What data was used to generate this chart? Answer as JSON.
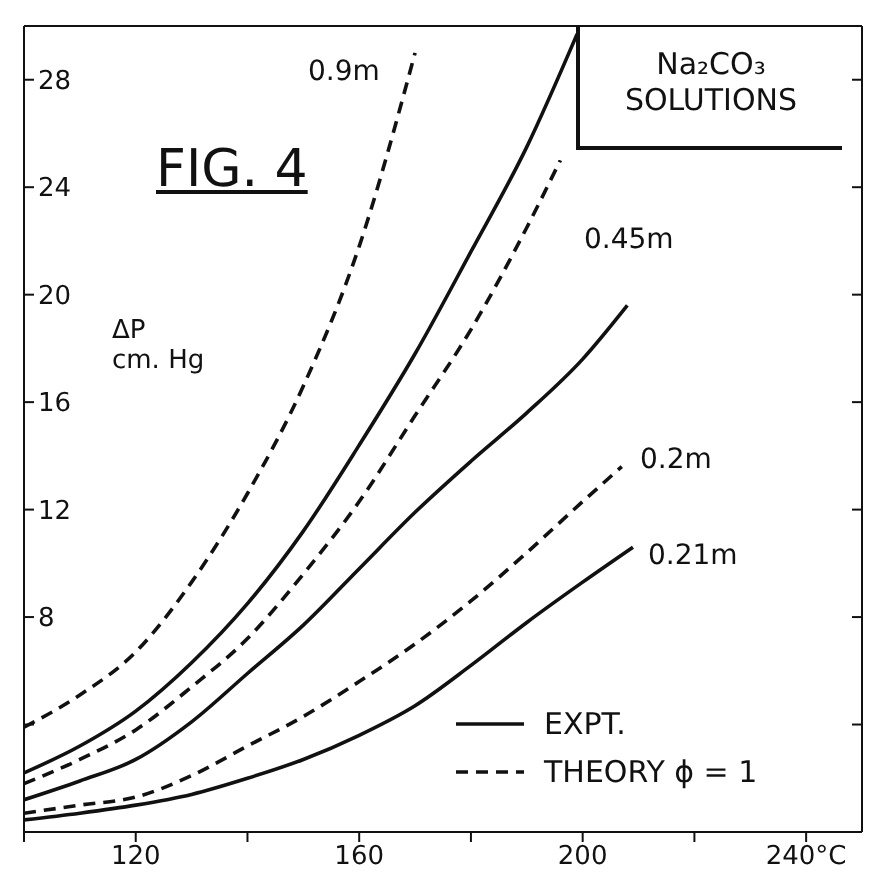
{
  "chart_data": {
    "type": "line",
    "title": "FIG. 4",
    "subtitle": "Na₂CO₃\nSOLUTIONS",
    "ylabel": "ΔP\ncm. Hg",
    "xlim": [
      100,
      250
    ],
    "xticks": [
      {
        "value": 100,
        "label": null
      },
      120,
      {
        "value": 140,
        "label": null
      },
      160,
      {
        "value": 180,
        "label": null
      },
      200,
      {
        "value": 220,
        "label": null
      },
      {
        "value": 240,
        "label": "240°C"
      }
    ],
    "ylim": [
      0,
      30
    ],
    "yticks": [
      {
        "value": 4,
        "label": null
      },
      8,
      12,
      16,
      20,
      24,
      28
    ],
    "grid": false,
    "marker": "none",
    "series": [
      {
        "color": "#111111",
        "line_style": "dashed",
        "x": [
          100,
          110,
          120,
          130,
          140,
          150,
          160,
          170
        ],
        "values": [
          3.9,
          5.1,
          6.7,
          9.3,
          12.6,
          16.6,
          21.8,
          29.0
        ]
      },
      {
        "color": "#111111",
        "line_style": "solid",
        "x": [
          100,
          110,
          120,
          130,
          140,
          150,
          160,
          170,
          180,
          190,
          199
        ],
        "values": [
          2.2,
          3.2,
          4.5,
          6.3,
          8.5,
          11.2,
          14.4,
          17.8,
          21.6,
          25.5,
          29.7
        ]
      },
      {
        "color": "#111111",
        "line_style": "dashed",
        "x": [
          100,
          110,
          120,
          130,
          140,
          150,
          160,
          170,
          180,
          190,
          196
        ],
        "values": [
          1.8,
          2.7,
          3.8,
          5.4,
          7.2,
          9.6,
          12.3,
          15.5,
          18.7,
          22.5,
          25.0
        ]
      },
      {
        "color": "#111111",
        "line_style": "solid",
        "x": [
          100,
          110,
          120,
          130,
          140,
          150,
          160,
          170,
          180,
          190,
          200,
          208
        ],
        "values": [
          1.2,
          1.9,
          2.7,
          4.1,
          5.9,
          7.7,
          9.8,
          11.9,
          13.8,
          15.6,
          17.6,
          19.6
        ]
      },
      {
        "color": "#111111",
        "line_style": "dashed",
        "x": [
          100,
          110,
          120,
          130,
          140,
          150,
          160,
          170,
          180,
          190,
          200,
          207
        ],
        "values": [
          0.7,
          1.0,
          1.3,
          2.1,
          3.2,
          4.3,
          5.6,
          7.0,
          8.6,
          10.4,
          12.3,
          13.6
        ]
      },
      {
        "color": "#111111",
        "line_style": "solid",
        "x": [
          100,
          110,
          120,
          130,
          140,
          150,
          160,
          170,
          180,
          190,
          200,
          209
        ],
        "values": [
          0.45,
          0.7,
          1.0,
          1.4,
          2.0,
          2.7,
          3.6,
          4.7,
          6.2,
          7.8,
          9.3,
          10.6
        ]
      }
    ],
    "annotations": [
      "0.9m",
      "0.45m",
      "0.2m",
      "0.21m",
      "EXPT.",
      "THEORY ϕ = 1"
    ]
  }
}
